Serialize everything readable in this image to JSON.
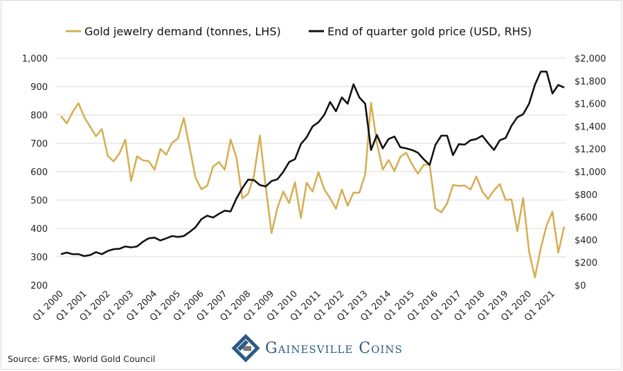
{
  "chart_data": {
    "type": "line",
    "title": "",
    "legend_position": "top",
    "grid": "horizontal",
    "x_tick_labels": [
      "Q1 2000",
      "Q1 2001",
      "Q1 2002",
      "Q1 2003",
      "Q1 2004",
      "Q1 2005",
      "Q1 2006",
      "Q1 2007",
      "Q1 2008",
      "Q1 2009",
      "Q1 2010",
      "Q1 2011",
      "Q1 2012",
      "Q1 2013",
      "Q1 2014",
      "Q1 2015",
      "Q1 2016",
      "Q1 2017",
      "Q1 2018",
      "Q1 2019",
      "Q1 2020",
      "Q1 2021"
    ],
    "x_range": [
      "Q1 2000",
      "Q3 2021"
    ],
    "left_axis": {
      "ylim": [
        200,
        1000
      ],
      "ticks": [
        "200",
        "300",
        "400",
        "500",
        "600",
        "700",
        "800",
        "900",
        "1,000"
      ]
    },
    "right_axis": {
      "ylim": [
        0,
        2000
      ],
      "ticks": [
        "$0",
        "$200",
        "$400",
        "$600",
        "$800",
        "$1,000",
        "$1,200",
        "$1,400",
        "$1,600",
        "$1,800",
        "$2,000"
      ]
    },
    "series": [
      {
        "name": "Gold jewelry demand (tonnes, LHS)",
        "axis": "left",
        "color": "#d6af55",
        "values": [
          796,
          770,
          810,
          841,
          792,
          758,
          725,
          750,
          656,
          636,
          664,
          713,
          567,
          654,
          640,
          637,
          607,
          680,
          660,
          702,
          717,
          789,
          685,
          579,
          538,
          550,
          618,
          634,
          607,
          713,
          650,
          506,
          522,
          587,
          727,
          546,
          384,
          473,
          530,
          489,
          563,
          437,
          561,
          530,
          598,
          538,
          506,
          469,
          537,
          480,
          526,
          526,
          591,
          843,
          701,
          607,
          641,
          602,
          652,
          667,
          626,
          593,
          624,
          626,
          470,
          457,
          488,
          553,
          550,
          551,
          537,
          583,
          530,
          504,
          534,
          556,
          500,
          502,
          390,
          507,
          319,
          227,
          330,
          410,
          459,
          315,
          406
        ]
      },
      {
        "name": "End of quarter gold price (USD, RHS)",
        "axis": "right",
        "color": "#111111",
        "values": [
          273,
          287,
          273,
          273,
          256,
          266,
          291,
          273,
          301,
          317,
          321,
          341,
          333,
          341,
          382,
          413,
          419,
          394,
          413,
          433,
          425,
          433,
          469,
          510,
          581,
          612,
          596,
          628,
          656,
          650,
          764,
          855,
          930,
          925,
          882,
          870,
          917,
          933,
          998,
          1085,
          1110,
          1242,
          1303,
          1398,
          1435,
          1500,
          1614,
          1532,
          1654,
          1598,
          1770,
          1654,
          1598,
          1191,
          1323,
          1205,
          1288,
          1309,
          1215,
          1205,
          1191,
          1167,
          1110,
          1059,
          1236,
          1317,
          1317,
          1146,
          1242,
          1238,
          1276,
          1288,
          1317,
          1252,
          1191,
          1276,
          1297,
          1404,
          1480,
          1506,
          1598,
          1764,
          1882,
          1882,
          1689,
          1764,
          1740
        ]
      }
    ]
  },
  "footer": {
    "source": "Source: GFMS, World Gold Council",
    "brand": "Gainesville Coins"
  }
}
